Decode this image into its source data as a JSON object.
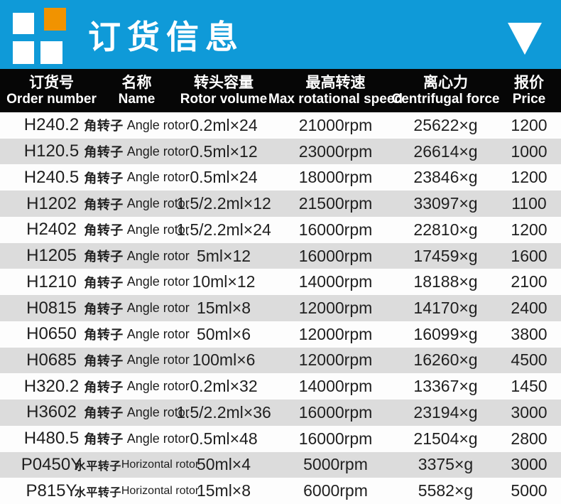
{
  "colors": {
    "banner_blue": "#0f9ad8",
    "logo_orange": "#f19300",
    "header_bg": "#060606",
    "row_bg": "#fdfdfd",
    "row_alt": "#dcdcdc"
  },
  "banner": {
    "title": "订货信息",
    "triangle_icon": "down-triangle"
  },
  "table": {
    "columns": [
      {
        "cn": "订货号",
        "en": "Order number"
      },
      {
        "cn": "名称",
        "en": "Name"
      },
      {
        "cn": "转头容量",
        "en": "Rotor volume"
      },
      {
        "cn": "最高转速",
        "en": "Max rotational speed"
      },
      {
        "cn": "离心力",
        "en": "Centrifugal force"
      },
      {
        "cn": "报价",
        "en": "Price"
      }
    ],
    "rows": [
      {
        "order": "H240.2",
        "name_cn": "角转子",
        "name_en": "Angle rotor",
        "volume": "0.2ml×24",
        "speed": "21000rpm",
        "force": "25622×g",
        "price": "1200"
      },
      {
        "order": "H120.5",
        "name_cn": "角转子",
        "name_en": "Angle rotor",
        "volume": "0.5ml×12",
        "speed": "23000rpm",
        "force": "26614×g",
        "price": "1000"
      },
      {
        "order": "H240.5",
        "name_cn": "角转子",
        "name_en": "Angle rotor",
        "volume": "0.5ml×24",
        "speed": "18000rpm",
        "force": "23846×g",
        "price": "1200"
      },
      {
        "order": "H1202",
        "name_cn": "角转子",
        "name_en": "Angle rotor",
        "volume": "1.5/2.2ml×12",
        "speed": "21500rpm",
        "force": "33097×g",
        "price": "1100"
      },
      {
        "order": "H2402",
        "name_cn": "角转子",
        "name_en": "Angle rotor",
        "volume": "1.5/2.2ml×24",
        "speed": "16000rpm",
        "force": "22810×g",
        "price": "1200"
      },
      {
        "order": "H1205",
        "name_cn": "角转子",
        "name_en": "Angle rotor",
        "volume": "5ml×12",
        "speed": "16000rpm",
        "force": "17459×g",
        "price": "1600"
      },
      {
        "order": "H1210",
        "name_cn": "角转子",
        "name_en": "Angle rotor",
        "volume": "10ml×12",
        "speed": "14000rpm",
        "force": "18188×g",
        "price": "2100"
      },
      {
        "order": "H0815",
        "name_cn": "角转子",
        "name_en": "Angle rotor",
        "volume": "15ml×8",
        "speed": "12000rpm",
        "force": "14170×g",
        "price": "2400"
      },
      {
        "order": "H0650",
        "name_cn": "角转子",
        "name_en": "Angle rotor",
        "volume": "50ml×6",
        "speed": "12000rpm",
        "force": "16099×g",
        "price": "3800"
      },
      {
        "order": "H0685",
        "name_cn": "角转子",
        "name_en": "Angle rotor",
        "volume": "100ml×6",
        "speed": "12000rpm",
        "force": "16260×g",
        "price": "4500"
      },
      {
        "order": "H320.2",
        "name_cn": "角转子",
        "name_en": "Angle rotor",
        "volume": "0.2ml×32",
        "speed": "14000rpm",
        "force": "13367×g",
        "price": "1450"
      },
      {
        "order": "H3602",
        "name_cn": "角转子",
        "name_en": "Angle rotor",
        "volume": "1.5/2.2ml×36",
        "speed": "16000rpm",
        "force": "23194×g",
        "price": "3000"
      },
      {
        "order": "H480.5",
        "name_cn": "角转子",
        "name_en": "Angle rotor",
        "volume": "0.5ml×48",
        "speed": "16000rpm",
        "force": "21504×g",
        "price": "2800"
      },
      {
        "order": "P0450Y",
        "name_cn": "水平转子",
        "name_en": "Horizontal rotor",
        "volume": "50ml×4",
        "speed": "5000rpm",
        "force": "3375×g",
        "price": "3000"
      },
      {
        "order": "P815Y",
        "name_cn": "水平转子",
        "name_en": "Horizontal rotor",
        "volume": "15ml×8",
        "speed": "6000rpm",
        "force": "5582×g",
        "price": "5000"
      }
    ]
  }
}
